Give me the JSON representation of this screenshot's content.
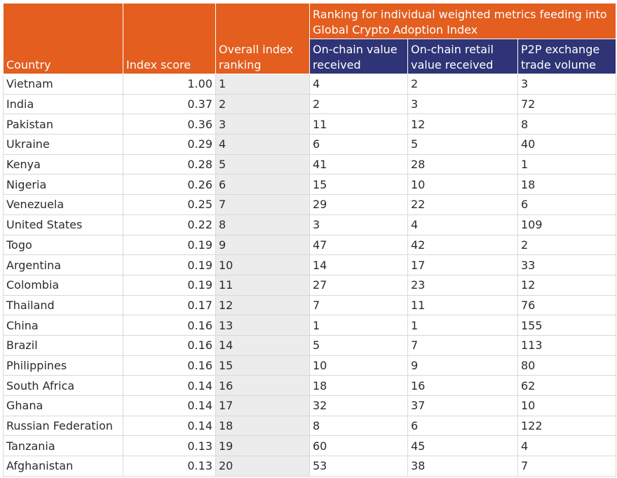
{
  "chart_data": {
    "type": "table",
    "headers": {
      "country": "Country",
      "index_score": "Index score",
      "overall_ranking": "Overall index ranking",
      "group_title": "Ranking for individual weighted metrics feeding into Global Crypto Adoption Index",
      "metric_1": "On-chain value received",
      "metric_2": "On-chain retail value received",
      "metric_3": "P2P exchange trade volume"
    },
    "rows": [
      {
        "country": "Vietnam",
        "score": "1.00",
        "rank": "1",
        "m1": "4",
        "m2": "2",
        "m3": "3"
      },
      {
        "country": "India",
        "score": "0.37",
        "rank": "2",
        "m1": "2",
        "m2": "3",
        "m3": "72"
      },
      {
        "country": "Pakistan",
        "score": "0.36",
        "rank": "3",
        "m1": "11",
        "m2": "12",
        "m3": "8"
      },
      {
        "country": "Ukraine",
        "score": "0.29",
        "rank": "4",
        "m1": "6",
        "m2": "5",
        "m3": "40"
      },
      {
        "country": "Kenya",
        "score": "0.28",
        "rank": "5",
        "m1": "41",
        "m2": "28",
        "m3": "1"
      },
      {
        "country": "Nigeria",
        "score": "0.26",
        "rank": "6",
        "m1": "15",
        "m2": "10",
        "m3": "18"
      },
      {
        "country": "Venezuela",
        "score": "0.25",
        "rank": "7",
        "m1": "29",
        "m2": "22",
        "m3": "6"
      },
      {
        "country": "United States",
        "score": "0.22",
        "rank": "8",
        "m1": "3",
        "m2": "4",
        "m3": "109"
      },
      {
        "country": "Togo",
        "score": "0.19",
        "rank": "9",
        "m1": "47",
        "m2": "42",
        "m3": "2"
      },
      {
        "country": "Argentina",
        "score": "0.19",
        "rank": "10",
        "m1": "14",
        "m2": "17",
        "m3": "33"
      },
      {
        "country": "Colombia",
        "score": "0.19",
        "rank": "11",
        "m1": "27",
        "m2": "23",
        "m3": "12"
      },
      {
        "country": "Thailand",
        "score": "0.17",
        "rank": "12",
        "m1": "7",
        "m2": "11",
        "m3": "76"
      },
      {
        "country": "China",
        "score": "0.16",
        "rank": "13",
        "m1": "1",
        "m2": "1",
        "m3": "155"
      },
      {
        "country": "Brazil",
        "score": "0.16",
        "rank": "14",
        "m1": "5",
        "m2": "7",
        "m3": "113"
      },
      {
        "country": "Philippines",
        "score": "0.16",
        "rank": "15",
        "m1": "10",
        "m2": "9",
        "m3": "80"
      },
      {
        "country": "South Africa",
        "score": "0.14",
        "rank": "16",
        "m1": "18",
        "m2": "16",
        "m3": "62"
      },
      {
        "country": "Ghana",
        "score": "0.14",
        "rank": "17",
        "m1": "32",
        "m2": "37",
        "m3": "10"
      },
      {
        "country": "Russian Federation",
        "score": "0.14",
        "rank": "18",
        "m1": "8",
        "m2": "6",
        "m3": "122"
      },
      {
        "country": "Tanzania",
        "score": "0.13",
        "rank": "19",
        "m1": "60",
        "m2": "45",
        "m3": "4"
      },
      {
        "country": "Afghanistan",
        "score": "0.13",
        "rank": "20",
        "m1": "53",
        "m2": "38",
        "m3": "7"
      }
    ],
    "colors": {
      "header_orange": "#e35e1f",
      "header_navy": "#2f3476",
      "rank_column_shade": "#ececec"
    }
  }
}
